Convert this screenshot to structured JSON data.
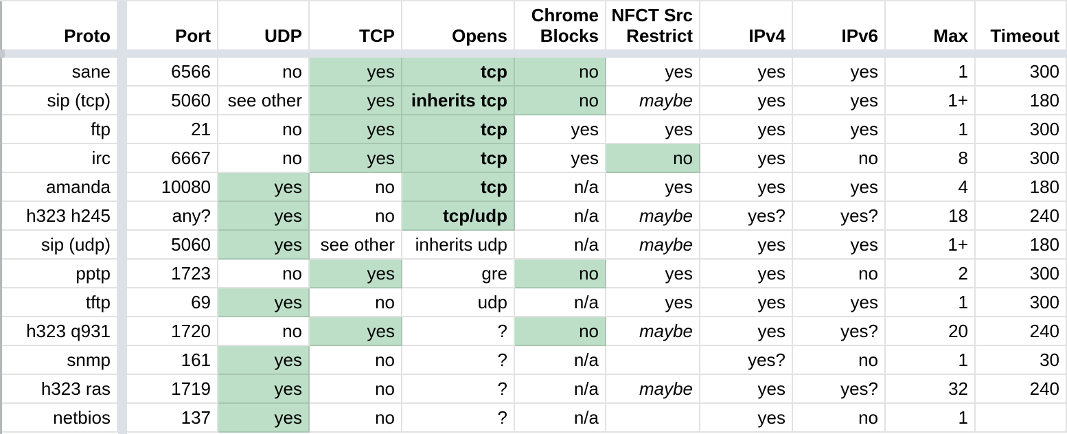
{
  "table": {
    "columns": [
      {
        "key": "proto",
        "label": "Proto"
      },
      {
        "key": "port",
        "label": "Port"
      },
      {
        "key": "udp",
        "label": "UDP"
      },
      {
        "key": "tcp",
        "label": "TCP"
      },
      {
        "key": "opens",
        "label": "Opens"
      },
      {
        "key": "chrome-blocks",
        "label": "Chrome Blocks"
      },
      {
        "key": "nfct-src-restrict",
        "label": "NFCT Src Restrict"
      },
      {
        "key": "ipv4",
        "label": "IPv4"
      },
      {
        "key": "ipv6",
        "label": "IPv6"
      },
      {
        "key": "max",
        "label": "Max"
      },
      {
        "key": "timeout",
        "label": "Timeout"
      }
    ],
    "rows": [
      {
        "cells": [
          {
            "text": "sane"
          },
          {
            "text": "6566"
          },
          {
            "text": "no"
          },
          {
            "text": "yes",
            "highlight": true
          },
          {
            "text": "tcp",
            "highlight": true,
            "bold": true
          },
          {
            "text": "no",
            "highlight": true
          },
          {
            "text": "yes"
          },
          {
            "text": "yes"
          },
          {
            "text": "yes"
          },
          {
            "text": "1"
          },
          {
            "text": "300"
          }
        ]
      },
      {
        "cells": [
          {
            "text": "sip (tcp)"
          },
          {
            "text": "5060"
          },
          {
            "text": "see other"
          },
          {
            "text": "yes",
            "highlight": true
          },
          {
            "text": "inherits tcp",
            "highlight": true,
            "bold": true
          },
          {
            "text": "no",
            "highlight": true
          },
          {
            "text": "maybe",
            "italic": true
          },
          {
            "text": "yes"
          },
          {
            "text": "yes"
          },
          {
            "text": "1+"
          },
          {
            "text": "180"
          }
        ]
      },
      {
        "cells": [
          {
            "text": "ftp"
          },
          {
            "text": "21"
          },
          {
            "text": "no"
          },
          {
            "text": "yes",
            "highlight": true
          },
          {
            "text": "tcp",
            "highlight": true,
            "bold": true
          },
          {
            "text": "yes"
          },
          {
            "text": "yes"
          },
          {
            "text": "yes"
          },
          {
            "text": "yes"
          },
          {
            "text": "1"
          },
          {
            "text": "300"
          }
        ]
      },
      {
        "cells": [
          {
            "text": "irc"
          },
          {
            "text": "6667"
          },
          {
            "text": "no"
          },
          {
            "text": "yes",
            "highlight": true
          },
          {
            "text": "tcp",
            "highlight": true,
            "bold": true
          },
          {
            "text": "yes"
          },
          {
            "text": "no",
            "highlight": true
          },
          {
            "text": "yes"
          },
          {
            "text": "no"
          },
          {
            "text": "8"
          },
          {
            "text": "300"
          }
        ]
      },
      {
        "cells": [
          {
            "text": "amanda"
          },
          {
            "text": "10080"
          },
          {
            "text": "yes",
            "highlight": true
          },
          {
            "text": "no"
          },
          {
            "text": "tcp",
            "highlight": true,
            "bold": true
          },
          {
            "text": "n/a"
          },
          {
            "text": "yes"
          },
          {
            "text": "yes"
          },
          {
            "text": "yes"
          },
          {
            "text": "4"
          },
          {
            "text": "180"
          }
        ]
      },
      {
        "cells": [
          {
            "text": "h323 h245"
          },
          {
            "text": "any?"
          },
          {
            "text": "yes",
            "highlight": true
          },
          {
            "text": "no"
          },
          {
            "text": "tcp/udp",
            "highlight": true,
            "bold": true
          },
          {
            "text": "n/a"
          },
          {
            "text": "maybe",
            "italic": true
          },
          {
            "text": "yes?"
          },
          {
            "text": "yes?"
          },
          {
            "text": "18"
          },
          {
            "text": "240"
          }
        ]
      },
      {
        "cells": [
          {
            "text": "sip (udp)"
          },
          {
            "text": "5060"
          },
          {
            "text": "yes",
            "highlight": true
          },
          {
            "text": "see other"
          },
          {
            "text": "inherits udp"
          },
          {
            "text": "n/a"
          },
          {
            "text": "maybe",
            "italic": true
          },
          {
            "text": "yes"
          },
          {
            "text": "yes"
          },
          {
            "text": "1+"
          },
          {
            "text": "180"
          }
        ]
      },
      {
        "cells": [
          {
            "text": "pptp"
          },
          {
            "text": "1723"
          },
          {
            "text": "no"
          },
          {
            "text": "yes",
            "highlight": true
          },
          {
            "text": "gre"
          },
          {
            "text": "no",
            "highlight": true
          },
          {
            "text": "yes"
          },
          {
            "text": "yes"
          },
          {
            "text": "no"
          },
          {
            "text": "2"
          },
          {
            "text": "300"
          }
        ]
      },
      {
        "cells": [
          {
            "text": "tftp"
          },
          {
            "text": "69"
          },
          {
            "text": "yes",
            "highlight": true
          },
          {
            "text": "no"
          },
          {
            "text": "udp"
          },
          {
            "text": "n/a"
          },
          {
            "text": "yes"
          },
          {
            "text": "yes"
          },
          {
            "text": "yes"
          },
          {
            "text": "1"
          },
          {
            "text": "300"
          }
        ]
      },
      {
        "cells": [
          {
            "text": "h323 q931"
          },
          {
            "text": "1720"
          },
          {
            "text": "no"
          },
          {
            "text": "yes",
            "highlight": true
          },
          {
            "text": "?"
          },
          {
            "text": "no",
            "highlight": true
          },
          {
            "text": "maybe",
            "italic": true
          },
          {
            "text": "yes"
          },
          {
            "text": "yes?"
          },
          {
            "text": "20"
          },
          {
            "text": "240"
          }
        ]
      },
      {
        "cells": [
          {
            "text": "snmp"
          },
          {
            "text": "161"
          },
          {
            "text": "yes",
            "highlight": true
          },
          {
            "text": "no"
          },
          {
            "text": "?"
          },
          {
            "text": "n/a"
          },
          {
            "text": ""
          },
          {
            "text": "yes?"
          },
          {
            "text": "no"
          },
          {
            "text": "1"
          },
          {
            "text": "30"
          }
        ]
      },
      {
        "cells": [
          {
            "text": "h323 ras"
          },
          {
            "text": "1719"
          },
          {
            "text": "yes",
            "highlight": true
          },
          {
            "text": "no"
          },
          {
            "text": "?"
          },
          {
            "text": "n/a"
          },
          {
            "text": "maybe",
            "italic": true
          },
          {
            "text": "yes"
          },
          {
            "text": "yes?"
          },
          {
            "text": "32"
          },
          {
            "text": "240"
          }
        ]
      },
      {
        "cells": [
          {
            "text": "netbios"
          },
          {
            "text": "137"
          },
          {
            "text": "yes",
            "highlight": true
          },
          {
            "text": "no"
          },
          {
            "text": "?"
          },
          {
            "text": "n/a"
          },
          {
            "text": ""
          },
          {
            "text": "yes"
          },
          {
            "text": "no"
          },
          {
            "text": "1"
          },
          {
            "text": ""
          }
        ]
      }
    ]
  },
  "colors": {
    "cell_highlight": "#bddfc8",
    "frozen_divider_band": "#dce0e7"
  }
}
